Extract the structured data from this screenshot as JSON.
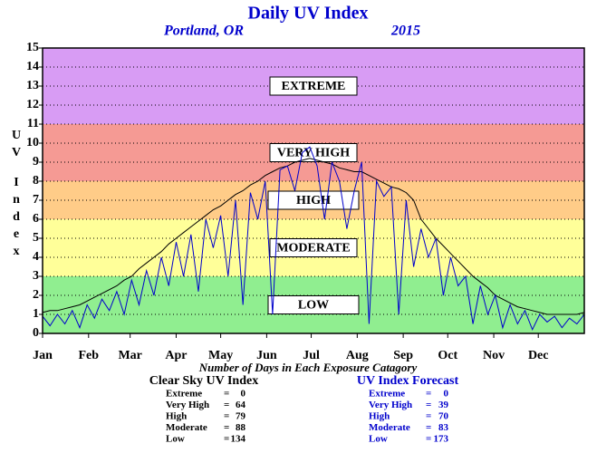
{
  "chart_data": {
    "type": "line",
    "title": "Daily UV Index",
    "subtitle": "Portland, OR",
    "year": "2015",
    "y_label": "UV Index",
    "x_label": "Number of Days in Each Exposure Catagory",
    "xlim": [
      0,
      365
    ],
    "xticks": [
      {
        "value": 0,
        "label": "Jan"
      },
      {
        "value": 31,
        "label": "Feb"
      },
      {
        "value": 59,
        "label": "Mar"
      },
      {
        "value": 90,
        "label": "Apr"
      },
      {
        "value": 120,
        "label": "May"
      },
      {
        "value": 151,
        "label": "Jun"
      },
      {
        "value": 181,
        "label": "Jul"
      },
      {
        "value": 212,
        "label": "Aug"
      },
      {
        "value": 243,
        "label": "Sep"
      },
      {
        "value": 273,
        "label": "Oct"
      },
      {
        "value": 304,
        "label": "Nov"
      },
      {
        "value": 334,
        "label": "Dec"
      }
    ],
    "ylim": [
      0,
      15
    ],
    "yticks": [
      0,
      1,
      2,
      3,
      4,
      5,
      6,
      7,
      8,
      9,
      10,
      11,
      12,
      13,
      14,
      15
    ],
    "grid": true,
    "bands": [
      {
        "name": "LOW",
        "from": 0,
        "to": 3,
        "color": "#90ee90"
      },
      {
        "name": "MODERATE",
        "from": 3,
        "to": 6,
        "color": "#ffff99"
      },
      {
        "name": "HIGH",
        "from": 6,
        "to": 8,
        "color": "#ffcc88"
      },
      {
        "name": "VERY HIGH",
        "from": 8,
        "to": 11,
        "color": "#f59a94"
      },
      {
        "name": "EXTREME",
        "from": 11,
        "to": 15,
        "color": "#d89cf4"
      }
    ],
    "x": [
      0,
      5,
      10,
      15,
      20,
      25,
      30,
      35,
      40,
      45,
      50,
      55,
      60,
      65,
      70,
      75,
      80,
      85,
      90,
      95,
      100,
      105,
      110,
      115,
      120,
      125,
      130,
      135,
      140,
      145,
      150,
      155,
      160,
      165,
      170,
      175,
      180,
      185,
      190,
      195,
      200,
      205,
      210,
      215,
      220,
      225,
      230,
      235,
      240,
      245,
      250,
      255,
      260,
      265,
      270,
      275,
      280,
      285,
      290,
      295,
      300,
      305,
      310,
      315,
      320,
      325,
      330,
      335,
      340,
      345,
      350,
      355,
      360,
      365
    ],
    "series": [
      {
        "name": "Clear Sky UV Index",
        "color": "#000000",
        "values": [
          1.1,
          1.2,
          1.2,
          1.3,
          1.4,
          1.5,
          1.7,
          1.9,
          2.1,
          2.3,
          2.5,
          2.8,
          3.0,
          3.4,
          3.7,
          4.0,
          4.3,
          4.7,
          5.0,
          5.3,
          5.6,
          5.9,
          6.2,
          6.5,
          6.7,
          7.0,
          7.3,
          7.5,
          7.8,
          8.0,
          8.3,
          8.5,
          8.7,
          8.8,
          9.0,
          9.1,
          9.2,
          9.1,
          9.0,
          8.9,
          8.7,
          8.6,
          8.5,
          8.5,
          8.3,
          8.1,
          7.9,
          7.7,
          7.6,
          7.4,
          7.0,
          6.0,
          5.5,
          5.0,
          4.6,
          4.2,
          3.8,
          3.4,
          3.0,
          2.7,
          2.4,
          2.0,
          1.8,
          1.6,
          1.4,
          1.3,
          1.2,
          1.1,
          1.0,
          1.0,
          1.0,
          1.0,
          1.0,
          1.1
        ]
      },
      {
        "name": "UV Index Forecast",
        "color": "#0000cc",
        "values": [
          0.9,
          0.4,
          1.0,
          0.5,
          1.2,
          0.3,
          1.5,
          0.8,
          1.8,
          1.2,
          2.2,
          1.0,
          2.8,
          1.5,
          3.3,
          2.0,
          4.0,
          2.5,
          4.8,
          3.0,
          5.2,
          2.2,
          6.0,
          4.5,
          6.2,
          3.0,
          7.0,
          1.5,
          7.4,
          6.0,
          8.0,
          1.0,
          8.6,
          8.8,
          7.5,
          9.5,
          9.8,
          8.8,
          6.0,
          9.0,
          8.0,
          5.5,
          7.5,
          9.0,
          0.5,
          8.0,
          7.2,
          7.7,
          1.0,
          7.0,
          3.5,
          5.5,
          4.0,
          5.0,
          2.0,
          4.0,
          2.5,
          3.0,
          0.5,
          2.5,
          1.0,
          2.0,
          0.3,
          1.5,
          0.5,
          1.2,
          0.2,
          1.0,
          0.6,
          0.9,
          0.3,
          0.8,
          0.5,
          1.0
        ]
      }
    ],
    "stats": [
      {
        "title": "Clear Sky UV Index",
        "color": "#000000",
        "separator": "=",
        "rows": [
          {
            "label": "Extreme",
            "value": 0
          },
          {
            "label": "Very High",
            "value": 64
          },
          {
            "label": "High",
            "value": 79
          },
          {
            "label": "Moderate",
            "value": 88
          },
          {
            "label": "Low",
            "value": 134
          }
        ]
      },
      {
        "title": "UV Index Forecast",
        "color": "#0000cc",
        "separator": "=",
        "rows": [
          {
            "label": "Extreme",
            "value": 0
          },
          {
            "label": "Very High",
            "value": 39
          },
          {
            "label": "High",
            "value": 70
          },
          {
            "label": "Moderate",
            "value": 83
          },
          {
            "label": "Low",
            "value": 173
          }
        ]
      }
    ]
  }
}
